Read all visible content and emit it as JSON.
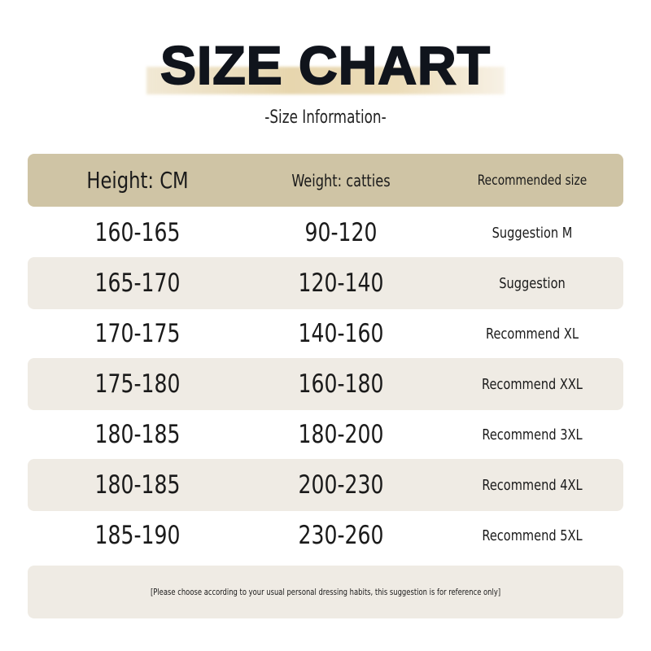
{
  "title": "SIZE CHART",
  "subtitle": "-Size Information-",
  "colors": {
    "header_band": "#cfc4a5",
    "shaded_row": "#efebe4",
    "brush_stroke": "#e7d6ae"
  },
  "table": {
    "headers": [
      "Height: CM",
      "Weight: catties",
      "Recommended size"
    ],
    "rows": [
      [
        "160-165",
        "90-120",
        "Suggestion M"
      ],
      [
        "165-170",
        "120-140",
        "Suggestion"
      ],
      [
        "170-175",
        "140-160",
        "Recommend XL"
      ],
      [
        "175-180",
        "160-180",
        "Recommend XXL"
      ],
      [
        "180-185",
        "180-200",
        "Recommend 3XL"
      ],
      [
        "180-185",
        "200-230",
        "Recommend 4XL"
      ],
      [
        "185-190",
        "230-260",
        "Recommend 5XL"
      ]
    ]
  },
  "footnote": "[Please choose according to your usual personal dressing habits, this suggestion is for reference only]"
}
